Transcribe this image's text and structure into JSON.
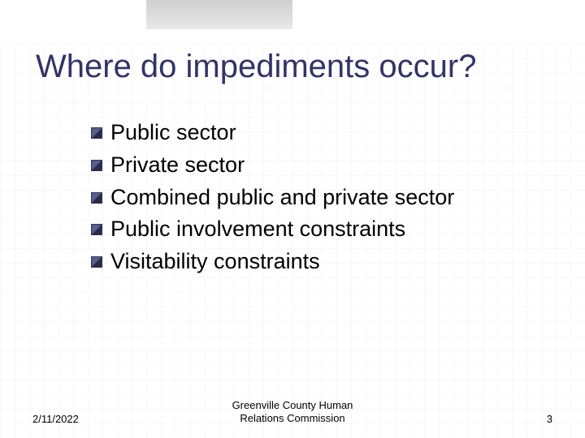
{
  "slide": {
    "title": "Where do impediments occur?",
    "title_color": "#333366",
    "title_fontsize": 40,
    "bullets": [
      "Public sector",
      "Private sector",
      "Combined public and private sector",
      "Public involvement constraints",
      "Visitability constraints"
    ],
    "bullet_fontsize": 27,
    "bullet_color": "#000000",
    "bullet_marker_colors": [
      "#5c5c8a",
      "#2a2a4a"
    ],
    "background_color": "#ffffff",
    "grid_color": "#f2f2f2",
    "accent_box_color": "#d9d9d9"
  },
  "footer": {
    "date": "2/11/2022",
    "org_line1": "Greenville County Human",
    "org_line2": "Relations Commission",
    "page_number": "3",
    "fontsize": 13,
    "color": "#000000"
  }
}
